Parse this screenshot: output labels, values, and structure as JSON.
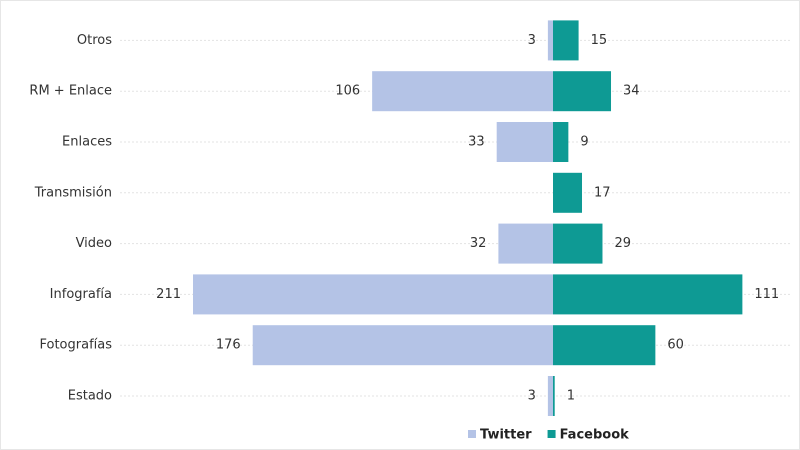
{
  "chart_data": {
    "type": "diverging-bar",
    "categories": [
      "Otros",
      "RM + Enlace",
      "Enlaces",
      "Transmisión",
      "Video",
      "Infografía",
      "Fotografías",
      "Estado"
    ],
    "series": [
      {
        "name": "Twitter",
        "color": "#b4c3e6",
        "values": [
          3,
          106,
          33,
          null,
          32,
          211,
          176,
          3
        ]
      },
      {
        "name": "Facebook",
        "color": "#0e9a94",
        "values": [
          15,
          34,
          9,
          17,
          29,
          111,
          60,
          1
        ]
      }
    ],
    "legend": "bottom"
  }
}
